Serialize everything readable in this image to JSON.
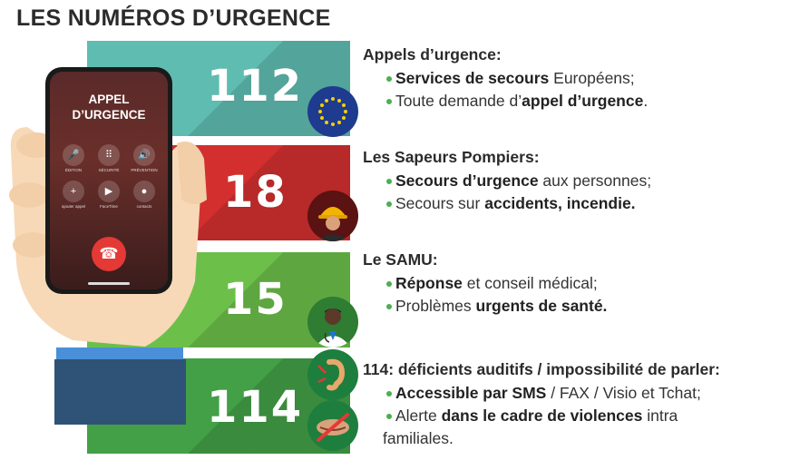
{
  "title": "LES NUMÉROS D’URGENCE",
  "phone": {
    "call_title_line1": "APPEL",
    "call_title_line2": "D’URGENCE",
    "buttons": [
      {
        "icon": "mic-off-icon",
        "label": "ÉDITION"
      },
      {
        "icon": "keypad-icon",
        "label": "SÉCURITÉ"
      },
      {
        "icon": "speaker-icon",
        "label": "PRÉVENTION"
      },
      {
        "icon": "add-call-icon",
        "label": "ajouter appel"
      },
      {
        "icon": "facetime-icon",
        "label": "FaceTime"
      },
      {
        "icon": "contacts-icon",
        "label": "contacts"
      }
    ],
    "hangup_icon": "hangup-icon"
  },
  "numbers": [
    {
      "num": "112",
      "color": "#5fbcb1",
      "icon": "eu-flag-icon"
    },
    {
      "num": "18",
      "color": "#d32f2f",
      "icon": "firefighter-icon"
    },
    {
      "num": "15",
      "color": "#6cc04a",
      "icon": "doctor-icon"
    },
    {
      "num": "114",
      "color": "#43a047",
      "icon": "ear-icon"
    }
  ],
  "sections": [
    {
      "head": "Appels d’urgence:",
      "l1": {
        "b1": "Services de secours",
        "t1": " Européens;"
      },
      "l2": {
        "t1": "Toute demande d’",
        "b1": "appel d’urgence",
        "t2": "."
      }
    },
    {
      "head": "Les Sapeurs Pompiers:",
      "l1": {
        "b1": "Secours d’urgence",
        "t1": " aux personnes;"
      },
      "l2": {
        "t1": "Secours sur ",
        "b1": "accidents, incendie."
      }
    },
    {
      "head": "Le SAMU:",
      "l1": {
        "b1": "Réponse",
        "t1": " et conseil médical;"
      },
      "l2": {
        "t1": "Problèmes ",
        "b1": "urgents de santé."
      }
    },
    {
      "head": "114: déficients auditifs / impossibilité de parler:",
      "l1": {
        "b1": "Accessible par SMS",
        "t1": " / FAX / Visio et Tchat;"
      },
      "l2": {
        "t1": "Alerte ",
        "b1": "dans le cadre de violences",
        "t2": " intra"
      },
      "l3": "familiales."
    }
  ]
}
